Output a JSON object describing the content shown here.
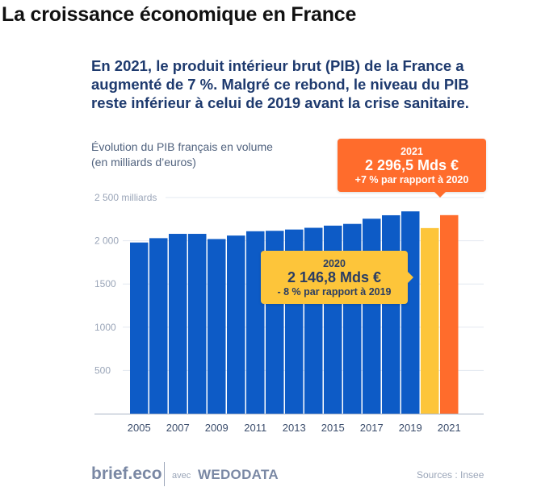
{
  "page": {
    "title": "La croissance économique en France"
  },
  "infographic": {
    "headline": "En 2021, le produit intérieur brut (PIB) de la France a augmenté de 7 %. Malgré ce rebond, le niveau du PIB reste inférieur à celui de 2019 avant la crise sanitaire.",
    "subtitle_line1": "Évolution du PIB français en volume",
    "subtitle_line2": "(en milliards d’euros)",
    "callouts": {
      "y2021": {
        "year": "2021",
        "value": "2 296,5 Mds €",
        "change": "+7 % par rapport à 2020"
      },
      "y2020": {
        "year": "2020",
        "value": "2 146,8 Mds €",
        "change": "- 8 % par rapport à 2019"
      }
    },
    "footer": {
      "logo": "brief.eco",
      "avec": "avec",
      "partner": "WEDODATA",
      "source": "Sources : Insee"
    }
  },
  "chart_data": {
    "type": "bar",
    "title": "Évolution du PIB français en volume (en milliards d’euros)",
    "xlabel": "",
    "ylabel": "milliards d’euros",
    "ylim": [
      0,
      2500
    ],
    "grid": true,
    "categories": [
      "2005",
      "2006",
      "2007",
      "2008",
      "2009",
      "2010",
      "2011",
      "2012",
      "2013",
      "2014",
      "2015",
      "2016",
      "2017",
      "2018",
      "2019",
      "2020",
      "2021"
    ],
    "values": [
      1980,
      2030,
      2080,
      2080,
      2020,
      2060,
      2110,
      2115,
      2130,
      2150,
      2175,
      2195,
      2255,
      2295,
      2340,
      2146.8,
      2296.5
    ],
    "bar_colors": {
      "default": "#0d5bc6",
      "2020": "#fdc53a",
      "2021": "#ff6c2c"
    },
    "x_tick_labels": [
      "2005",
      "2007",
      "2009",
      "2011",
      "2013",
      "2015",
      "2017",
      "2019",
      "2021"
    ],
    "y_ticks": [
      {
        "value": 500,
        "label": "500"
      },
      {
        "value": 1000,
        "label": "1000"
      },
      {
        "value": 1500,
        "label": "1500"
      },
      {
        "value": 2000,
        "label": "2 000"
      },
      {
        "value": 2500,
        "label": "2 500 milliards"
      }
    ],
    "annotations": [
      "2021: 2 296,5 Mds € (+7 % par rapport à 2020)",
      "2020: 2 146,8 Mds € (-8 % par rapport à 2019)"
    ]
  }
}
